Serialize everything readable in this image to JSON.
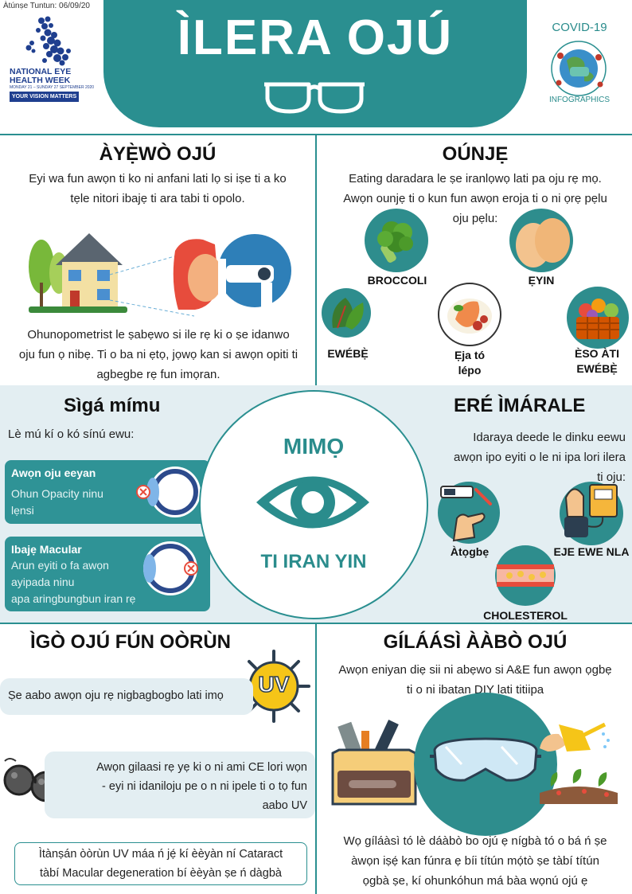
{
  "header": {
    "date": "Àtúnṣe Tuntun: 06/09/20",
    "title": "ÌLERA OJÚ",
    "nehw_line1": "NATIONAL EYE",
    "nehw_line2": "HEALTH WEEK",
    "nehw_dates": "MONDAY 21 – SUNDAY 27 SEPTEMBER 2020",
    "nehw_tagline": "YOUR VISION MATTERS",
    "covid_top": "COVID-19",
    "covid_bottom": "INFOGRAPHICS"
  },
  "eye_test": {
    "heading": "ÀYẸ̀WÒ OJÚ",
    "intro_1": "Eyi wa fun awọn ti ko ni anfani lati lọ si iṣe ti a ko",
    "intro_2": "tẹle nitori ibajẹ ti ara tabi ti opolo.",
    "body_1": "Ohunopometrist  le ṣabẹwo  si ile rẹ ki o ṣe idanwo",
    "body_2": "oju fun ọ nibẹ.  Ti o ba ni ẹtọ, jọwọ kan si awọn opiti ti",
    "body_3": "agbegbe rẹ fun imọran."
  },
  "food": {
    "heading": "OÚNJẸ",
    "intro_1": "Eating daradara le ṣe iranlọwọ lati pa oju rẹ mọ.",
    "intro_2": "Awọn ounjẹ ti o kun fun awọn eroja ti o ni ọrẹ pẹlu",
    "intro_3": "oju pẹlu:",
    "items": {
      "broccoli": "BROCCOLI",
      "eggs": "ẸYIN",
      "greens": "EWÉBẸ̀",
      "fish_1": "Ẹja tó",
      "fish_2": "lépo",
      "fruit_1": "ÈSO ÀTI",
      "fruit_2": "EWÉBẸ̀"
    }
  },
  "smoking": {
    "heading": "Sìgá mímu",
    "intro": "Lè mú kí o kó sínú ewu:",
    "card1_title": "Awọn oju eeyan",
    "card1_line1": "Ohun Opacity ninu",
    "card1_line2": "lẹnsi",
    "card2_title": "Ibajẹ Macular",
    "card2_line1": "Arun eyiti o fa awọn",
    "card2_line2": "ayipada ninu",
    "card2_line3": "apa aringbungbun  iran rẹ"
  },
  "center": {
    "top": "MIMỌ",
    "bottom": "TI IRAN YIN"
  },
  "exercise": {
    "heading": "ERÉ ÌMÁRALE",
    "intro_1": "Idaraya deede  le dinku  eewu",
    "intro_2": "awọn ipo eyiti o le ni ipa lori ilera",
    "intro_3": "ti oju:",
    "diabetes": "Àtọgbẹ",
    "blood_pressure": "EJE EWE NLA",
    "cholesterol": "CHOLESTEROL"
  },
  "sun": {
    "heading": "ÌGÒ OJÚ FÚN OÒRÙN",
    "uv_badge": "UV",
    "pill1": "Ṣe aabo awọn oju rẹ nigbagbogbo  lati imọ",
    "pill2_line1": "Awọn gilaasi rẹ yẹ ki o ni ami CE lori wọn",
    "pill2_line2": "- eyi ni idaniloju  pe o n ni ipele  ti o tọ fun",
    "pill2_line3": "aabo UV",
    "box_line1": "Ìtànṣán òòrùn UV máa ń jẹ́ kí èèyàn ní Cataract",
    "box_line2": "tàbí Macular degeneration  bí èèyàn ṣe ń dàgbà"
  },
  "goggles": {
    "heading": "GÍLÁÁSÌ ÀÀBÒ OJÚ",
    "intro_1": "Awọn eniyan diẹ sii ni abẹwo si A&E fun awọn ọgbẹ",
    "intro_2": "ti o ni ibatan DIY lati titiipa",
    "body_1": "Wọ gíláàsì tó lè dáàbò bo ojú ẹ nígbà tó o bá ń ṣe",
    "body_2": "àwọn iṣẹ́ kan fúnra ẹ bíi títún mọ́tò ṣe tàbí títún",
    "body_3": "ọgbà ṣe, kí ohunkóhun  má bàa wọnú ojú ẹ"
  },
  "colors": {
    "teal": "#2a8f90",
    "band": "#e3eef2",
    "navy": "#1f3f8f"
  }
}
